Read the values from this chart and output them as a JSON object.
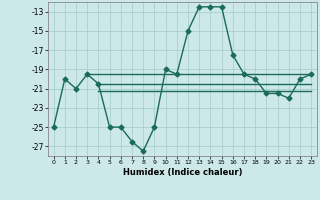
{
  "x": [
    0,
    1,
    2,
    3,
    4,
    5,
    6,
    7,
    8,
    9,
    10,
    11,
    12,
    13,
    14,
    15,
    16,
    17,
    18,
    19,
    20,
    21,
    22,
    23
  ],
  "y_main": [
    -25,
    -20,
    -21,
    -19.5,
    -20.5,
    -25,
    -25,
    -26.5,
    -27.5,
    -25,
    -19,
    -19.5,
    -15,
    -12.5,
    -12.5,
    -12.5,
    -17.5,
    -19.5,
    -20,
    -21.5,
    -21.5,
    -22,
    -20,
    -19.5
  ],
  "ref_lines": [
    {
      "x": [
        3,
        23
      ],
      "y": [
        -19.5,
        -19.5
      ]
    },
    {
      "x": [
        4,
        23
      ],
      "y": [
        -20.5,
        -20.5
      ]
    },
    {
      "x": [
        4,
        23
      ],
      "y": [
        -21.2,
        -21.2
      ]
    }
  ],
  "line_color": "#1a6b5a",
  "bg_color": "#cce8e8",
  "grid_color": "#aad0d0",
  "xlabel": "Humidex (Indice chaleur)",
  "ylim": [
    -28,
    -12
  ],
  "xlim": [
    -0.5,
    23.5
  ],
  "yticks": [
    -27,
    -25,
    -23,
    -21,
    -19,
    -17,
    -15,
    -13
  ],
  "xticks": [
    0,
    1,
    2,
    3,
    4,
    5,
    6,
    7,
    8,
    9,
    10,
    11,
    12,
    13,
    14,
    15,
    16,
    17,
    18,
    19,
    20,
    21,
    22,
    23
  ],
  "marker": "D",
  "marker_size": 2.5,
  "linewidth": 1.0
}
